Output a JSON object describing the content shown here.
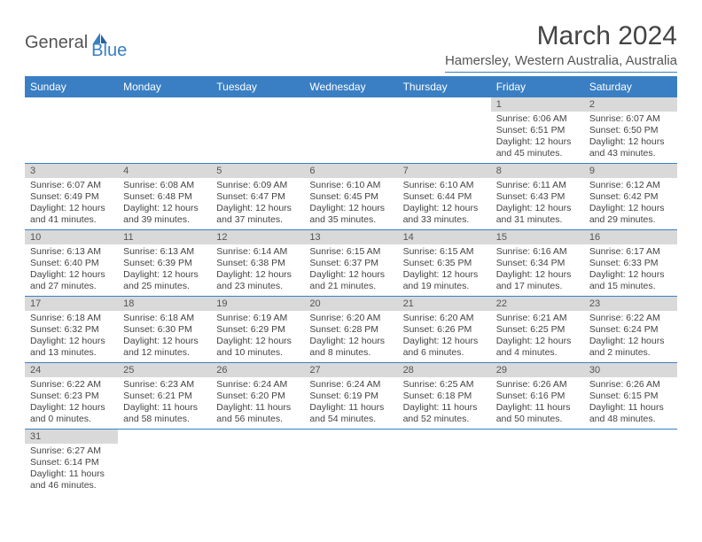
{
  "logo": {
    "general": "General",
    "blue": "Blue"
  },
  "title": "March 2024",
  "subtitle": "Hamersley, Western Australia, Australia",
  "colors": {
    "header_bg": "#3a7fc4",
    "header_text": "#ffffff",
    "daynum_bg": "#d9d9d9",
    "divider": "#3a7fc4",
    "text": "#444444"
  },
  "day_headers": [
    "Sunday",
    "Monday",
    "Tuesday",
    "Wednesday",
    "Thursday",
    "Friday",
    "Saturday"
  ],
  "weeks": [
    [
      null,
      null,
      null,
      null,
      null,
      {
        "num": "1",
        "sunrise": "6:06 AM",
        "sunset": "6:51 PM",
        "daylight": "12 hours and 45 minutes."
      },
      {
        "num": "2",
        "sunrise": "6:07 AM",
        "sunset": "6:50 PM",
        "daylight": "12 hours and 43 minutes."
      }
    ],
    [
      {
        "num": "3",
        "sunrise": "6:07 AM",
        "sunset": "6:49 PM",
        "daylight": "12 hours and 41 minutes."
      },
      {
        "num": "4",
        "sunrise": "6:08 AM",
        "sunset": "6:48 PM",
        "daylight": "12 hours and 39 minutes."
      },
      {
        "num": "5",
        "sunrise": "6:09 AM",
        "sunset": "6:47 PM",
        "daylight": "12 hours and 37 minutes."
      },
      {
        "num": "6",
        "sunrise": "6:10 AM",
        "sunset": "6:45 PM",
        "daylight": "12 hours and 35 minutes."
      },
      {
        "num": "7",
        "sunrise": "6:10 AM",
        "sunset": "6:44 PM",
        "daylight": "12 hours and 33 minutes."
      },
      {
        "num": "8",
        "sunrise": "6:11 AM",
        "sunset": "6:43 PM",
        "daylight": "12 hours and 31 minutes."
      },
      {
        "num": "9",
        "sunrise": "6:12 AM",
        "sunset": "6:42 PM",
        "daylight": "12 hours and 29 minutes."
      }
    ],
    [
      {
        "num": "10",
        "sunrise": "6:13 AM",
        "sunset": "6:40 PM",
        "daylight": "12 hours and 27 minutes."
      },
      {
        "num": "11",
        "sunrise": "6:13 AM",
        "sunset": "6:39 PM",
        "daylight": "12 hours and 25 minutes."
      },
      {
        "num": "12",
        "sunrise": "6:14 AM",
        "sunset": "6:38 PM",
        "daylight": "12 hours and 23 minutes."
      },
      {
        "num": "13",
        "sunrise": "6:15 AM",
        "sunset": "6:37 PM",
        "daylight": "12 hours and 21 minutes."
      },
      {
        "num": "14",
        "sunrise": "6:15 AM",
        "sunset": "6:35 PM",
        "daylight": "12 hours and 19 minutes."
      },
      {
        "num": "15",
        "sunrise": "6:16 AM",
        "sunset": "6:34 PM",
        "daylight": "12 hours and 17 minutes."
      },
      {
        "num": "16",
        "sunrise": "6:17 AM",
        "sunset": "6:33 PM",
        "daylight": "12 hours and 15 minutes."
      }
    ],
    [
      {
        "num": "17",
        "sunrise": "6:18 AM",
        "sunset": "6:32 PM",
        "daylight": "12 hours and 13 minutes."
      },
      {
        "num": "18",
        "sunrise": "6:18 AM",
        "sunset": "6:30 PM",
        "daylight": "12 hours and 12 minutes."
      },
      {
        "num": "19",
        "sunrise": "6:19 AM",
        "sunset": "6:29 PM",
        "daylight": "12 hours and 10 minutes."
      },
      {
        "num": "20",
        "sunrise": "6:20 AM",
        "sunset": "6:28 PM",
        "daylight": "12 hours and 8 minutes."
      },
      {
        "num": "21",
        "sunrise": "6:20 AM",
        "sunset": "6:26 PM",
        "daylight": "12 hours and 6 minutes."
      },
      {
        "num": "22",
        "sunrise": "6:21 AM",
        "sunset": "6:25 PM",
        "daylight": "12 hours and 4 minutes."
      },
      {
        "num": "23",
        "sunrise": "6:22 AM",
        "sunset": "6:24 PM",
        "daylight": "12 hours and 2 minutes."
      }
    ],
    [
      {
        "num": "24",
        "sunrise": "6:22 AM",
        "sunset": "6:23 PM",
        "daylight": "12 hours and 0 minutes."
      },
      {
        "num": "25",
        "sunrise": "6:23 AM",
        "sunset": "6:21 PM",
        "daylight": "11 hours and 58 minutes."
      },
      {
        "num": "26",
        "sunrise": "6:24 AM",
        "sunset": "6:20 PM",
        "daylight": "11 hours and 56 minutes."
      },
      {
        "num": "27",
        "sunrise": "6:24 AM",
        "sunset": "6:19 PM",
        "daylight": "11 hours and 54 minutes."
      },
      {
        "num": "28",
        "sunrise": "6:25 AM",
        "sunset": "6:18 PM",
        "daylight": "11 hours and 52 minutes."
      },
      {
        "num": "29",
        "sunrise": "6:26 AM",
        "sunset": "6:16 PM",
        "daylight": "11 hours and 50 minutes."
      },
      {
        "num": "30",
        "sunrise": "6:26 AM",
        "sunset": "6:15 PM",
        "daylight": "11 hours and 48 minutes."
      }
    ],
    [
      {
        "num": "31",
        "sunrise": "6:27 AM",
        "sunset": "6:14 PM",
        "daylight": "11 hours and 46 minutes."
      },
      null,
      null,
      null,
      null,
      null,
      null
    ]
  ],
  "labels": {
    "sunrise_prefix": "Sunrise: ",
    "sunset_prefix": "Sunset: ",
    "daylight_prefix": "Daylight: "
  }
}
